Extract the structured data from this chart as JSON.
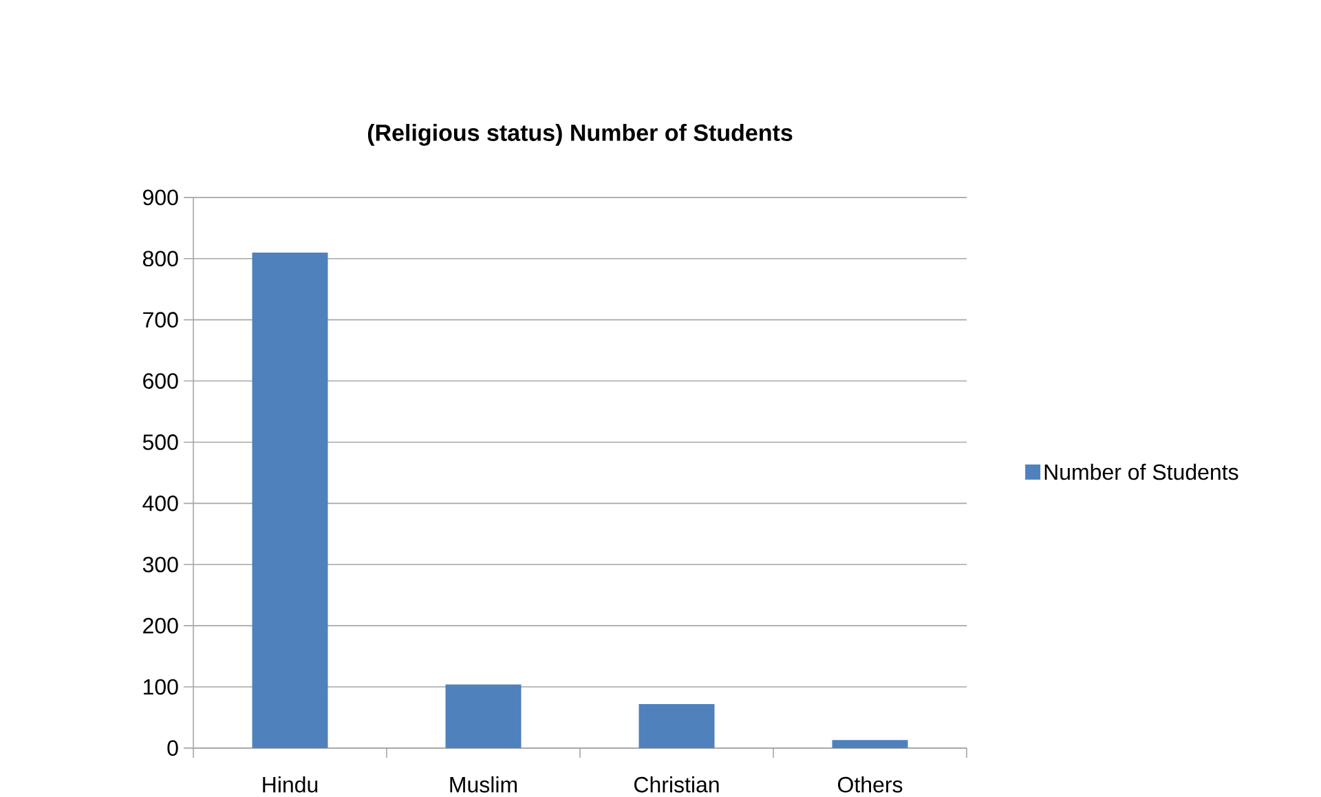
{
  "chart_data": {
    "type": "bar",
    "title": "(Religious status) Number of Students",
    "categories": [
      "Hindu",
      "Muslim",
      "Christian",
      "Others"
    ],
    "series": [
      {
        "name": "Number of Students",
        "color": "#4f81bd",
        "values": [
          810,
          104,
          72,
          13
        ]
      }
    ],
    "ylim": [
      0,
      900
    ],
    "yticks": [
      0,
      100,
      200,
      300,
      400,
      500,
      600,
      700,
      800,
      900
    ],
    "grid": "y",
    "legend": "right"
  }
}
